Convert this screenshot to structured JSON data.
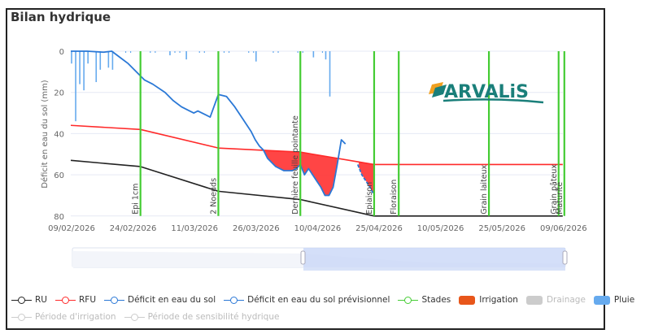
{
  "title": "Bilan hydrique",
  "logo": {
    "text": "ARVALiS",
    "color": "#1a7f7a",
    "accent": "#f0a020"
  },
  "colors": {
    "ru": "#222222",
    "rfu": "#ff2a2a",
    "deficit": "#2a78d6",
    "stades": "#44cc33",
    "irrigation": "#e8561a",
    "drainage": "#cccccc",
    "pluie": "#66aaee",
    "fill": "#ff3b3b"
  },
  "legend": {
    "ru": "RU",
    "rfu": "RFU",
    "deficit": "Déficit en eau du sol",
    "deficit_prev": "Déficit en eau du sol prévisionnel",
    "stades": "Stades",
    "irrigation": "Irrigation",
    "drainage": "Drainage",
    "pluie": "Pluie",
    "periode_irrigation": "Période d'irrigation",
    "periode_sensibilite": "Période de sensibilité hydrique"
  },
  "chart_data": {
    "type": "line",
    "title": "Bilan hydrique",
    "xlabel": "",
    "ylabel": "Déficit en eau du sol (mm)",
    "ylim": [
      0,
      80
    ],
    "y_inverted": true,
    "yticks": [
      "0",
      "20",
      "40",
      "60",
      "80"
    ],
    "xticks": [
      "09/02/2026",
      "24/02/2026",
      "11/03/2026",
      "26/03/2026",
      "10/04/2026",
      "25/04/2026",
      "10/05/2026",
      "25/05/2026",
      "09/06/2026"
    ],
    "grid": true,
    "legend_position": "bottom",
    "stages": [
      {
        "label": "Epi 1cm",
        "date": "26/02/2026"
      },
      {
        "label": "2 Noeuds",
        "date": "17/03/2026"
      },
      {
        "label": "Dernière feuille pointante",
        "date": "06/04/2026"
      },
      {
        "label": "Epiaison",
        "date": "24/04/2026"
      },
      {
        "label": "Floraison",
        "date": "30/04/2026"
      },
      {
        "label": "Grain laiteux",
        "date": "22/05/2026"
      },
      {
        "label": "Grain pâteux",
        "date": "08/06/2026"
      },
      {
        "label": "Maturité",
        "date": "09/06/2026"
      }
    ],
    "series": [
      {
        "name": "RU",
        "x_days": [
          0,
          17,
          36,
          56,
          74,
          120
        ],
        "values": [
          53,
          56,
          68,
          72,
          80,
          80
        ]
      },
      {
        "name": "RFU",
        "x_days": [
          0,
          17,
          36,
          56,
          74,
          120
        ],
        "values": [
          36,
          38,
          47,
          49,
          55,
          55
        ]
      },
      {
        "name": "Déficit en eau du sol",
        "x_days": [
          0,
          4,
          8,
          10,
          12,
          14,
          16,
          18,
          20,
          23,
          25,
          27,
          29,
          30,
          31,
          32,
          34,
          36,
          38,
          40,
          42,
          44,
          45,
          46,
          47,
          48,
          50,
          52,
          54,
          55,
          56,
          57,
          58,
          59,
          60,
          61,
          62,
          63,
          64,
          65,
          66,
          67,
          68,
          70,
          71,
          73,
          74
        ],
        "values": [
          0,
          0,
          0.5,
          0,
          3,
          6,
          10,
          14,
          16,
          20,
          24,
          27,
          29,
          30,
          29,
          30,
          32,
          21,
          22,
          27,
          33,
          39,
          43,
          46,
          48,
          52,
          56,
          58,
          58,
          57,
          55,
          60,
          57,
          60,
          63,
          66,
          70,
          70,
          66,
          55,
          43,
          45,
          50,
          55,
          60,
          66,
          70
        ]
      },
      {
        "name": "Pluie (mm, bars)",
        "x_days": [
          0,
          1,
          2,
          3,
          4,
          6,
          7,
          9,
          10,
          24,
          28,
          45,
          59,
          62,
          63
        ],
        "values": [
          6,
          34,
          16,
          19,
          6,
          15,
          9,
          8,
          9,
          2,
          4,
          5,
          3,
          4,
          22
        ]
      }
    ]
  },
  "navigator": {
    "range_start": "10/04/2026",
    "range_end": "09/06/2026"
  }
}
